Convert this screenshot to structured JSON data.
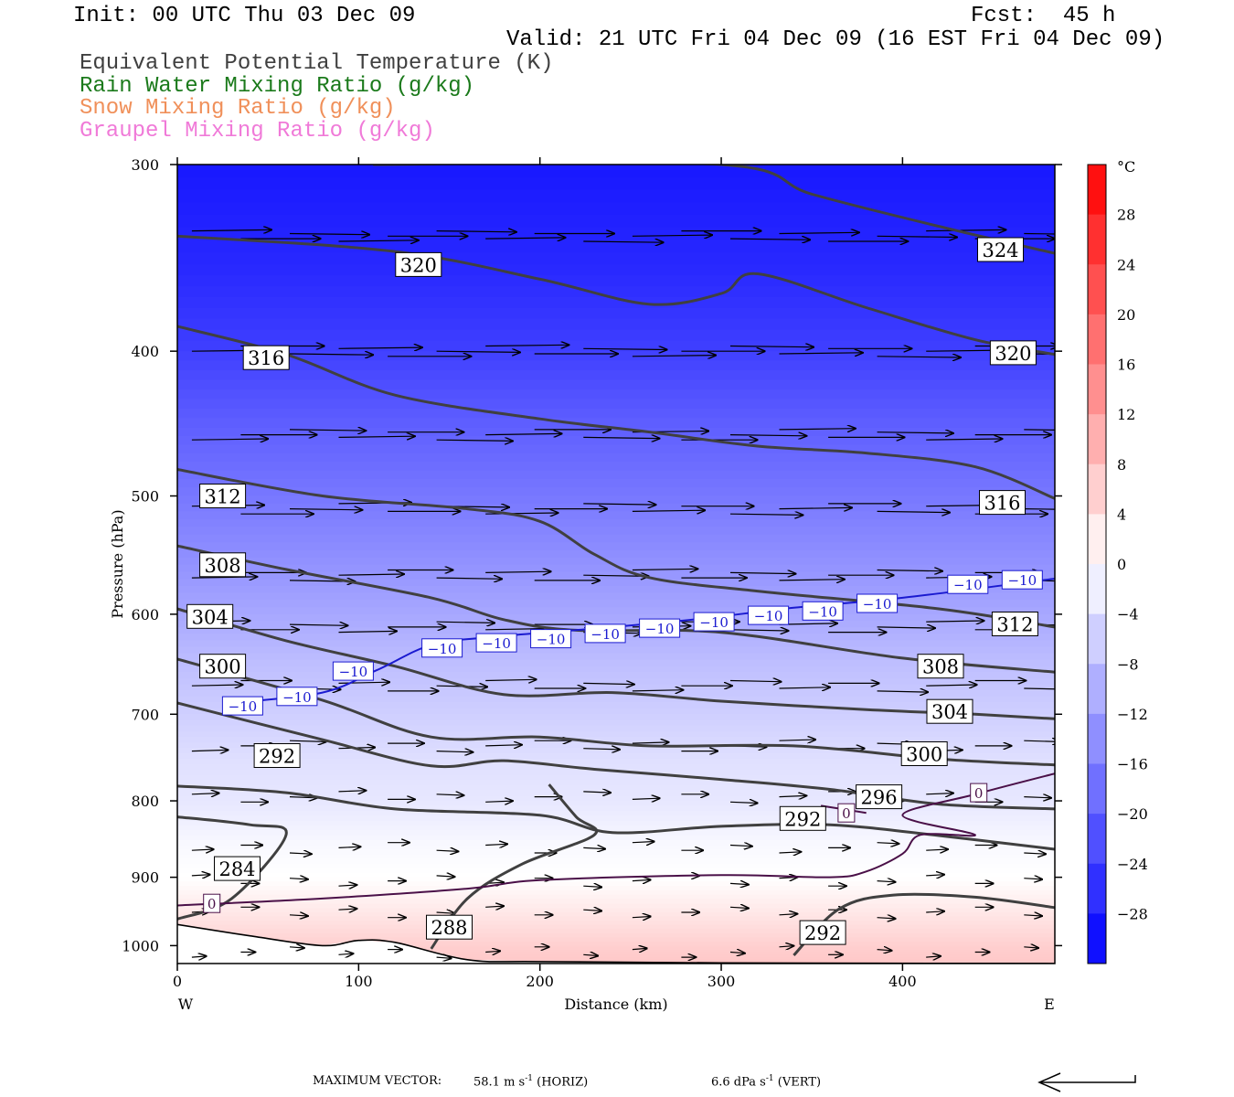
{
  "header": {
    "init": "Init: 00 UTC Thu 03 Dec 09",
    "fcst": "Fcst:  45 h",
    "valid": "Valid: 21 UTC Fri 04 Dec 09 (16 EST Fri 04 Dec 09)"
  },
  "legend": [
    {
      "label": "Equivalent Potential Temperature (K)",
      "color": "#404040"
    },
    {
      "label": "Rain Water Mixing Ratio (g/kg)",
      "color": "#1b7a1b"
    },
    {
      "label": "Snow Mixing Ratio (g/kg)",
      "color": "#f0905a"
    },
    {
      "label": "Graupel Mixing Ratio (g/kg)",
      "color": "#f07ad8"
    }
  ],
  "chart_data": {
    "type": "contour cross-section",
    "xlabel": "Distance (km)",
    "ylabel": "Pressure (hPa)",
    "x_ticks": [
      0,
      100,
      200,
      300,
      400
    ],
    "y_ticks": [
      300,
      400,
      500,
      600,
      700,
      800,
      900,
      1000
    ],
    "xlim": [
      0,
      484
    ],
    "ylim": [
      1028,
      300
    ],
    "y_scale": "log",
    "x_end_labels": {
      "left": "W",
      "right": "E"
    },
    "colorbar": {
      "unit": "°C",
      "tick_labels": [
        "28",
        "24",
        "20",
        "16",
        "12",
        "8",
        "4",
        "0",
        "−4",
        "−8",
        "−12",
        "−16",
        "−20",
        "−24",
        "−28"
      ],
      "range": [
        -32,
        32
      ],
      "step": 4
    },
    "theta_e_contours": [
      {
        "value": 324,
        "points": [
          [
            108,
            300
          ],
          [
            300,
            300
          ],
          [
            350,
            314
          ],
          [
            420,
            330
          ],
          [
            484,
            344
          ]
        ]
      },
      {
        "value": 320,
        "points": [
          [
            0,
            335
          ],
          [
            120,
            343
          ],
          [
            200,
            358
          ],
          [
            260,
            372
          ],
          [
            300,
            366
          ],
          [
            320,
            355
          ],
          [
            380,
            374
          ],
          [
            440,
            393
          ],
          [
            484,
            402
          ]
        ]
      },
      {
        "value": 316,
        "points": [
          [
            0,
            385
          ],
          [
            60,
            402
          ],
          [
            120,
            428
          ],
          [
            200,
            444
          ],
          [
            260,
            453
          ],
          [
            320,
            463
          ],
          [
            380,
            468
          ],
          [
            440,
            478
          ],
          [
            484,
            502
          ]
        ]
      },
      {
        "value": 312,
        "points": [
          [
            0,
            480
          ],
          [
            80,
            500
          ],
          [
            160,
            510
          ],
          [
            200,
            520
          ],
          [
            230,
            547
          ],
          [
            260,
            567
          ],
          [
            320,
            579
          ],
          [
            420,
            595
          ],
          [
            484,
            612
          ]
        ]
      },
      {
        "value": 308,
        "points": [
          [
            0,
            540
          ],
          [
            60,
            560
          ],
          [
            140,
            585
          ],
          [
            180,
            605
          ],
          [
            220,
            615
          ],
          [
            300,
            617
          ],
          [
            400,
            642
          ],
          [
            484,
            656
          ]
        ]
      },
      {
        "value": 304,
        "points": [
          [
            0,
            595
          ],
          [
            60,
            625
          ],
          [
            120,
            650
          ],
          [
            180,
            679
          ],
          [
            240,
            677
          ],
          [
            300,
            686
          ],
          [
            380,
            695
          ],
          [
            440,
            700
          ],
          [
            484,
            705
          ]
        ]
      },
      {
        "value": 300,
        "points": [
          [
            0,
            643
          ],
          [
            80,
            685
          ],
          [
            140,
            725
          ],
          [
            200,
            725
          ],
          [
            260,
            735
          ],
          [
            340,
            735
          ],
          [
            420,
            750
          ],
          [
            484,
            757
          ]
        ]
      },
      {
        "value": 296,
        "points": [
          [
            0,
            688
          ],
          [
            80,
            728
          ],
          [
            140,
            758
          ],
          [
            180,
            752
          ],
          [
            230,
            762
          ],
          [
            300,
            774
          ],
          [
            360,
            786
          ],
          [
            420,
            804
          ],
          [
            484,
            810
          ]
        ]
      },
      {
        "value": 292,
        "points": [
          [
            0,
            782
          ],
          [
            60,
            790
          ],
          [
            120,
            810
          ],
          [
            200,
            818
          ],
          [
            240,
            840
          ],
          [
            300,
            832
          ],
          [
            360,
            830
          ],
          [
            420,
            844
          ],
          [
            484,
            862
          ]
        ]
      },
      {
        "value": 288,
        "points": [
          [
            0,
            820
          ],
          [
            40,
            830
          ],
          [
            60,
            843
          ],
          [
            30,
            930
          ],
          [
            0,
            960
          ]
        ]
      },
      {
        "value": 288,
        "points": [
          [
            140,
            1005
          ],
          [
            160,
            930
          ],
          [
            190,
            882
          ],
          [
            230,
            843
          ],
          [
            220,
            820
          ],
          [
            205,
            780
          ]
        ]
      },
      {
        "value": 292,
        "points": [
          [
            340,
            1015
          ],
          [
            365,
            945
          ],
          [
            395,
            925
          ],
          [
            440,
            928
          ],
          [
            484,
            943
          ]
        ]
      }
    ],
    "theta_e_labels": [
      {
        "text": "324",
        "x": 454,
        "p": 342
      },
      {
        "text": "320",
        "x": 133,
        "p": 350
      },
      {
        "text": "320",
        "x": 461,
        "p": 401
      },
      {
        "text": "316",
        "x": 49,
        "p": 404
      },
      {
        "text": "316",
        "x": 455,
        "p": 505
      },
      {
        "text": "312",
        "x": 25,
        "p": 500
      },
      {
        "text": "312",
        "x": 462,
        "p": 609
      },
      {
        "text": "308",
        "x": 25,
        "p": 556
      },
      {
        "text": "308",
        "x": 421,
        "p": 650
      },
      {
        "text": "304",
        "x": 18,
        "p": 602
      },
      {
        "text": "304",
        "x": 426,
        "p": 697
      },
      {
        "text": "300",
        "x": 25,
        "p": 650
      },
      {
        "text": "300",
        "x": 412,
        "p": 744
      },
      {
        "text": "296",
        "x": 387,
        "p": 795
      },
      {
        "text": "292",
        "x": 55,
        "p": 746
      },
      {
        "text": "292",
        "x": 345,
        "p": 822
      },
      {
        "text": "284",
        "x": 33,
        "p": 888
      },
      {
        "text": "288",
        "x": 150,
        "p": 972
      },
      {
        "text": "292",
        "x": 356,
        "p": 980
      }
    ],
    "isotherms": [
      {
        "value": -10,
        "points": [
          [
            30,
            688
          ],
          [
            80,
            677
          ],
          [
            110,
            654
          ],
          [
            140,
            629
          ],
          [
            170,
            622
          ],
          [
            240,
            612
          ],
          [
            290,
            604
          ],
          [
            340,
            594
          ],
          [
            400,
            585
          ],
          [
            484,
            568
          ]
        ]
      },
      {
        "value": 0,
        "points": [
          [
            0,
            940
          ],
          [
            80,
            930
          ],
          [
            160,
            916
          ],
          [
            200,
            904
          ],
          [
            300,
            897
          ],
          [
            360,
            900
          ],
          [
            380,
            892
          ],
          [
            400,
            868
          ],
          [
            410,
            843
          ],
          [
            440,
            843
          ],
          [
            400,
            818
          ],
          [
            440,
            792
          ],
          [
            484,
            767
          ]
        ]
      },
      {
        "value": 0,
        "points": [
          [
            355,
            806
          ],
          [
            380,
            815
          ]
        ]
      }
    ],
    "isotherm_labels": [
      {
        "text": "−10",
        "x": 36,
        "p": 691
      },
      {
        "text": "−10",
        "x": 66,
        "p": 681
      },
      {
        "text": "−10",
        "x": 97,
        "p": 655
      },
      {
        "text": "−10",
        "x": 146,
        "p": 632
      },
      {
        "text": "−10",
        "x": 176,
        "p": 627
      },
      {
        "text": "−10",
        "x": 206,
        "p": 623
      },
      {
        "text": "−10",
        "x": 236,
        "p": 618
      },
      {
        "text": "−10",
        "x": 266,
        "p": 613
      },
      {
        "text": "−10",
        "x": 296,
        "p": 607
      },
      {
        "text": "−10",
        "x": 326,
        "p": 601
      },
      {
        "text": "−10",
        "x": 356,
        "p": 597
      },
      {
        "text": "−10",
        "x": 386,
        "p": 590
      },
      {
        "text": "−10",
        "x": 436,
        "p": 573
      },
      {
        "text": "−10",
        "x": 466,
        "p": 569
      },
      {
        "text": "0",
        "x": 19,
        "p": 937
      },
      {
        "text": "0",
        "x": 369,
        "p": 815
      },
      {
        "text": "0",
        "x": 442,
        "p": 790
      }
    ],
    "temperature_field": [
      {
        "p": 300,
        "temp": -29
      },
      {
        "p": 350,
        "temp": -27
      },
      {
        "p": 400,
        "temp": -24
      },
      {
        "p": 450,
        "temp": -20
      },
      {
        "p": 500,
        "temp": -17
      },
      {
        "p": 550,
        "temp": -14
      },
      {
        "p": 600,
        "temp": -11
      },
      {
        "p": 650,
        "temp": -8
      },
      {
        "p": 700,
        "temp": -6
      },
      {
        "p": 750,
        "temp": -4
      },
      {
        "p": 800,
        "temp": -3
      },
      {
        "p": 850,
        "temp": -1
      },
      {
        "p": 900,
        "temp": 0
      },
      {
        "p": 950,
        "temp": 3
      },
      {
        "p": 1000,
        "temp": 6
      },
      {
        "p": 1028,
        "temp": 7
      }
    ],
    "wind_arrow_rows": [
      {
        "p": 335,
        "length_km": 44
      },
      {
        "p": 400,
        "length_km": 46
      },
      {
        "p": 455,
        "length_km": 42
      },
      {
        "p": 510,
        "length_km": 40
      },
      {
        "p": 565,
        "length_km": 36
      },
      {
        "p": 612,
        "length_km": 32
      },
      {
        "p": 670,
        "length_km": 28
      },
      {
        "p": 735,
        "length_km": 20
      },
      {
        "p": 795,
        "length_km": 15
      },
      {
        "p": 860,
        "length_km": 12
      },
      {
        "p": 905,
        "length_km": 10
      },
      {
        "p": 950,
        "length_km": 10
      },
      {
        "p": 1010,
        "length_km": 8
      }
    ],
    "terrain": [
      [
        0,
        968
      ],
      [
        40,
        985
      ],
      [
        80,
        1000
      ],
      [
        100,
        992
      ],
      [
        120,
        995
      ],
      [
        160,
        1022
      ],
      [
        200,
        1025
      ],
      [
        300,
        1027
      ],
      [
        484,
        1028
      ]
    ]
  },
  "footer": {
    "max_vector_label": "MAXIMUM VECTOR:",
    "horiz_value": "58.1 m s",
    "horiz_exp": "-1",
    "horiz_tag": "(HORIZ)",
    "vert_text": "6.6 dPa s",
    "vert_exp": "-1",
    "vert_tag": "(VERT)"
  },
  "colors": {
    "theta_e": "#404040",
    "isotherm_neg": "#1a1ad0",
    "isotherm_zero": "#4a1048",
    "terrain": "#000000"
  }
}
